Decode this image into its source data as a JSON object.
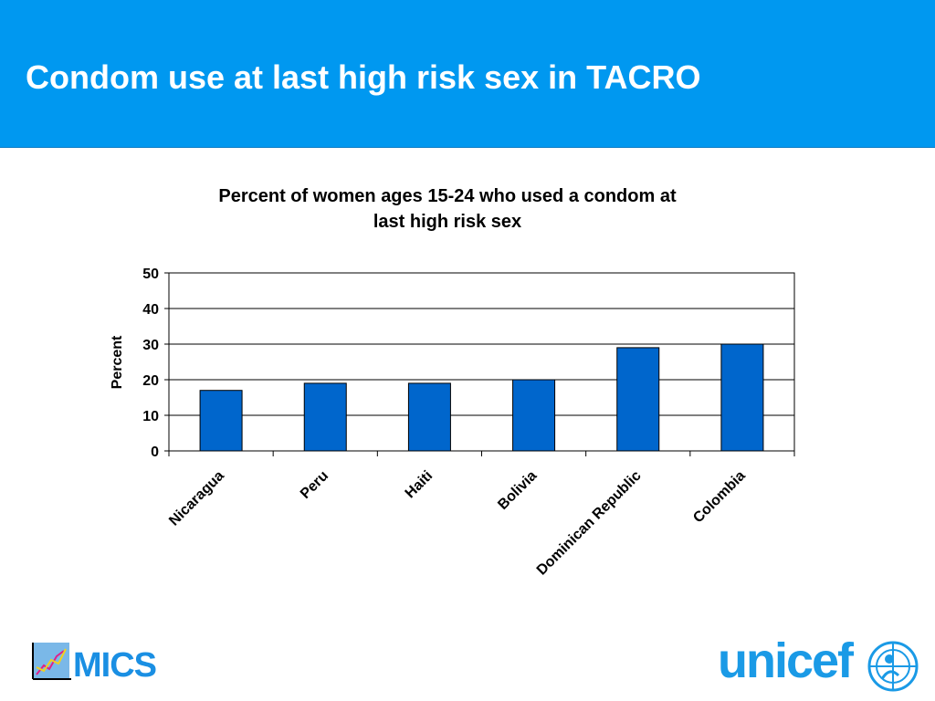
{
  "slide": {
    "title": "Condom use at last high risk sex in TACRO"
  },
  "chart_data": {
    "type": "bar",
    "title_line1": "Percent of women ages 15-24 who used a condom at",
    "title_line2": "last high risk sex",
    "categories": [
      "Nicaragua",
      "Peru",
      "Haiti",
      "Bolivia",
      "Dominican Republic",
      "Colombia"
    ],
    "values": [
      17,
      19,
      19,
      20,
      29,
      30
    ],
    "ylabel": "Percent",
    "xlabel": "",
    "ylim": [
      0,
      50
    ],
    "yticks": [
      0,
      10,
      20,
      30,
      40,
      50
    ],
    "grid": true,
    "legend": "none",
    "bar_color": "#0066cc"
  },
  "logos": {
    "mics": "MICS",
    "unicef": "unicef"
  },
  "colors": {
    "header": "#0098f0",
    "mics": "#1a8fe3",
    "unicef": "#1a9ae6"
  }
}
